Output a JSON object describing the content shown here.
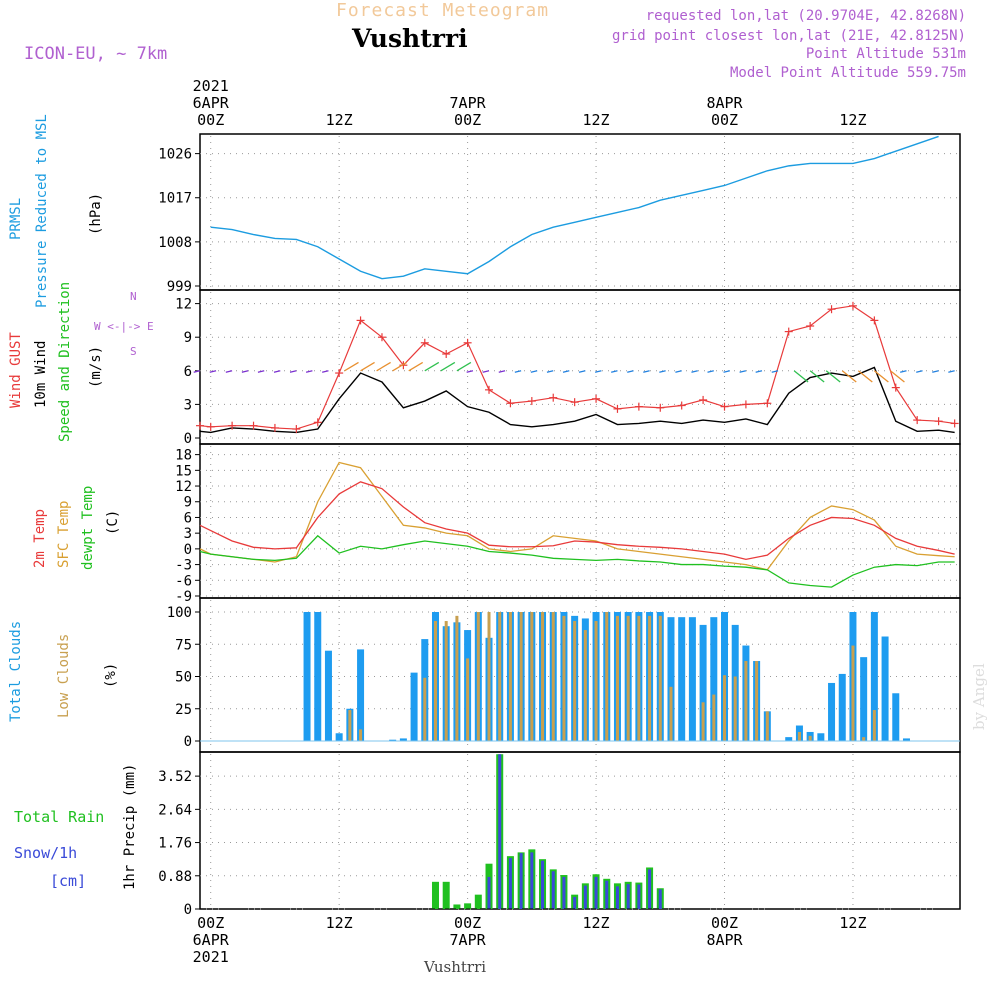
{
  "header": {
    "supertitle": "Forecast Meteogram",
    "station": "Vushtrri",
    "model": "ICON-EU, ~ 7km",
    "requested": "requested lon,lat (20.9704E, 42.8268N)",
    "closest": "grid point closest lon,lat (21E, 42.8125N)",
    "point_alt": "Point Altitude 531m",
    "model_alt": "Model Point Altitude 559.75m",
    "footer_station": "Vushtrri",
    "credit": "by Angel"
  },
  "time_axis": {
    "top": [
      {
        "hour": 0,
        "lines": [
          "2021",
          "6APR",
          "00Z"
        ]
      },
      {
        "hour": 12,
        "lines": [
          "12Z"
        ]
      },
      {
        "hour": 24,
        "lines": [
          "7APR",
          "00Z"
        ]
      },
      {
        "hour": 36,
        "lines": [
          "12Z"
        ]
      },
      {
        "hour": 48,
        "lines": [
          "8APR",
          "00Z"
        ]
      },
      {
        "hour": 60,
        "lines": [
          "12Z"
        ]
      }
    ],
    "bottom": [
      {
        "hour": 0,
        "lines": [
          "00Z",
          "6APR",
          "2021"
        ]
      },
      {
        "hour": 12,
        "lines": [
          "12Z"
        ]
      },
      {
        "hour": 24,
        "lines": [
          "00Z",
          "7APR"
        ]
      },
      {
        "hour": 36,
        "lines": [
          "12Z"
        ]
      },
      {
        "hour": 48,
        "lines": [
          "00Z",
          "8APR"
        ]
      },
      {
        "hour": 60,
        "lines": [
          "12Z"
        ]
      }
    ]
  },
  "panel_labels": {
    "prmsl": {
      "name": "PRMSL",
      "desc": "Pressure Reduced to MSL",
      "unit": "(hPa)"
    },
    "wind": {
      "gust": "Wind GUST",
      "wind10": "10m Wind",
      "dir": "Speed and Direction",
      "unit": "(m/s)",
      "compass_n": "N",
      "compass_s": "S",
      "compass_ew": "W <-|-> E"
    },
    "temp": {
      "t2m": "2m Temp",
      "sfc": "SFC Temp",
      "dew": "dewpt Temp",
      "unit": "(C)"
    },
    "cloud": {
      "total": "Total Clouds",
      "low": "Low Clouds",
      "unit": "(%)"
    },
    "precip": {
      "rain": "Total  Rain",
      "snow": "Snow/1h",
      "snow_unit": "[cm]",
      "ylabel": "1hr Precip (mm)"
    }
  },
  "colors": {
    "pressure": "#1c9ce0",
    "gust": "#e83a3a",
    "wind": "#000000",
    "arrows_low": "#7a2fd0",
    "t2m": "#e83a3a",
    "sfc": "#d9a032",
    "dew": "#20c020",
    "total_cloud": "#1e9cf0",
    "low_cloud": "#c8a050",
    "rain": "#20c020",
    "snow": "#3a4ad8",
    "accent": "#b060d0"
  },
  "chart_data": [
    {
      "type": "line",
      "title": "PRMSL Pressure Reduced to MSL",
      "ylabel": "(hPa)",
      "x_start_hour": -1,
      "x_end_hour": 70,
      "ylim": [
        999,
        1030
      ],
      "yticks": [
        999,
        1008,
        1017,
        1026
      ],
      "series": [
        {
          "name": "Pressure",
          "x": [
            0,
            2,
            4,
            6,
            8,
            10,
            12,
            14,
            16,
            18,
            20,
            22,
            24,
            26,
            28,
            30,
            32,
            34,
            36,
            38,
            40,
            42,
            44,
            46,
            48,
            50,
            52,
            54,
            56,
            58,
            60,
            62,
            64,
            66,
            68
          ],
          "values": [
            1011,
            1010.5,
            1009.5,
            1008.7,
            1008.5,
            1007,
            1004.5,
            1002,
            1000.5,
            1001,
            1002.5,
            1002,
            1001.5,
            1004,
            1007,
            1009.5,
            1011,
            1012,
            1013,
            1014,
            1015,
            1016.5,
            1017.5,
            1018.5,
            1019.5,
            1021,
            1022.5,
            1023.5,
            1024,
            1024,
            1024,
            1025,
            1026.5,
            1028,
            1029.5
          ]
        }
      ]
    },
    {
      "type": "line",
      "title": "Wind GUST / 10m Wind Speed and Direction",
      "ylabel": "(m/s)",
      "ylim": [
        0,
        12.5
      ],
      "yticks": [
        0,
        3,
        6,
        9,
        12
      ],
      "series": [
        {
          "name": "Wind GUST",
          "x": [
            -1,
            0,
            2,
            4,
            6,
            8,
            10,
            12,
            14,
            16,
            18,
            20,
            22,
            24,
            26,
            28,
            30,
            32,
            34,
            36,
            38,
            40,
            42,
            44,
            46,
            48,
            50,
            52,
            54,
            56,
            58,
            60,
            62,
            64,
            66,
            68,
            69.5
          ],
          "values": [
            1.1,
            1,
            1.1,
            1.1,
            0.9,
            0.8,
            1.4,
            5.8,
            10.5,
            9,
            6.5,
            8.5,
            7.5,
            8.5,
            4.3,
            3.1,
            3.3,
            3.6,
            3.2,
            3.5,
            2.6,
            2.8,
            2.7,
            2.9,
            3.4,
            2.8,
            3,
            3.1,
            9.5,
            10,
            11.5,
            11.8,
            10.5,
            4.5,
            1.6,
            1.5,
            1.3
          ]
        },
        {
          "name": "10m Wind",
          "x": [
            -1,
            0,
            2,
            4,
            6,
            8,
            10,
            12,
            14,
            16,
            18,
            20,
            22,
            24,
            26,
            28,
            30,
            32,
            34,
            36,
            38,
            40,
            42,
            44,
            46,
            48,
            50,
            52,
            54,
            56,
            58,
            60,
            62,
            64,
            66,
            68,
            69.5
          ],
          "values": [
            0.6,
            0.5,
            0.9,
            0.8,
            0.6,
            0.5,
            0.8,
            3.5,
            5.8,
            5,
            2.7,
            3.3,
            4.2,
            2.8,
            2.3,
            1.2,
            1,
            1.2,
            1.5,
            2.1,
            1.2,
            1.3,
            1.5,
            1.3,
            1.6,
            1.4,
            1.7,
            1.2,
            4,
            5.4,
            5.8,
            5.5,
            6.3,
            1.5,
            0.6,
            0.7,
            0.5
          ]
        }
      ]
    },
    {
      "type": "line",
      "title": "2m Temp / SFC Temp / dewpt Temp",
      "ylabel": "(C)",
      "ylim": [
        -9,
        18.5
      ],
      "yticks": [
        -9,
        -6,
        -3,
        0,
        3,
        6,
        9,
        12,
        15,
        18
      ],
      "series": [
        {
          "name": "2m Temp",
          "x": [
            -1,
            0,
            2,
            4,
            6,
            8,
            10,
            12,
            14,
            16,
            18,
            20,
            22,
            24,
            26,
            28,
            30,
            32,
            34,
            36,
            38,
            40,
            42,
            44,
            46,
            48,
            50,
            52,
            54,
            56,
            58,
            60,
            62,
            64,
            66,
            68,
            69.5
          ],
          "values": [
            4.5,
            3.5,
            1.5,
            0.3,
            0,
            0.2,
            6,
            10.5,
            12.8,
            11.5,
            8,
            5,
            3.8,
            3,
            0.7,
            0.4,
            0.4,
            0.6,
            1.5,
            1.3,
            0.8,
            0.5,
            0.3,
            0,
            -0.5,
            -1,
            -2,
            -1.2,
            2,
            4.5,
            6,
            5.8,
            4.5,
            2,
            0.5,
            -0.3,
            -1
          ]
        },
        {
          "name": "SFC Temp",
          "x": [
            -1,
            0,
            2,
            4,
            6,
            8,
            10,
            12,
            14,
            16,
            18,
            20,
            22,
            24,
            26,
            28,
            30,
            32,
            34,
            36,
            38,
            40,
            42,
            44,
            46,
            48,
            50,
            52,
            54,
            56,
            58,
            60,
            62,
            64,
            66,
            68,
            69.5
          ],
          "values": [
            0,
            -1,
            -1.5,
            -2,
            -2.5,
            -1.5,
            9,
            16.5,
            15.5,
            10,
            4.5,
            4,
            3,
            2.5,
            0,
            -0.5,
            0,
            2.5,
            2,
            1.5,
            0,
            -0.5,
            -1,
            -1.5,
            -2,
            -2.5,
            -3,
            -4,
            1.5,
            6,
            8.2,
            7.5,
            5.5,
            0.5,
            -1,
            -1.3,
            -1.5
          ]
        },
        {
          "name": "dewpt Temp",
          "x": [
            -1,
            0,
            2,
            4,
            6,
            8,
            10,
            12,
            14,
            16,
            18,
            20,
            22,
            24,
            26,
            28,
            30,
            32,
            34,
            36,
            38,
            40,
            42,
            44,
            46,
            48,
            50,
            52,
            54,
            56,
            58,
            60,
            62,
            64,
            66,
            68,
            69.5
          ],
          "values": [
            -0.5,
            -1,
            -1.5,
            -2,
            -2.2,
            -1.8,
            2.5,
            -0.8,
            0.5,
            0,
            0.8,
            1.5,
            1,
            0.5,
            -0.5,
            -0.8,
            -1.2,
            -1.8,
            -2,
            -2.2,
            -2,
            -2.3,
            -2.5,
            -3,
            -3,
            -3.3,
            -3.5,
            -4,
            -6.5,
            -7,
            -7.3,
            -5,
            -3.5,
            -3,
            -3.2,
            -2.5,
            -2.5
          ]
        }
      ]
    },
    {
      "type": "bar",
      "title": "Total Clouds / Low Clouds",
      "ylabel": "(%)",
      "ylim": [
        0,
        100
      ],
      "yticks": [
        0,
        25,
        50,
        75,
        100
      ],
      "hours": [
        9,
        10,
        11,
        12,
        13,
        14,
        15,
        16,
        17,
        18,
        19,
        20,
        21,
        22,
        23,
        24,
        25,
        26,
        27,
        28,
        29,
        30,
        31,
        32,
        33,
        34,
        35,
        36,
        37,
        38,
        39,
        40,
        41,
        42,
        43,
        44,
        45,
        46,
        47,
        48,
        49,
        50,
        51,
        52,
        53,
        54,
        55,
        56,
        57,
        58,
        59,
        60,
        61,
        62,
        63,
        64,
        65,
        66,
        67,
        68,
        69,
        70
      ],
      "series": [
        {
          "name": "Total Clouds",
          "values": [
            100,
            100,
            70,
            6,
            25,
            71,
            0,
            0,
            1,
            2,
            53,
            79,
            100,
            89,
            92,
            86,
            100,
            80,
            100,
            100,
            100,
            100,
            100,
            100,
            100,
            97,
            95,
            100,
            100,
            100,
            100,
            100,
            100,
            100,
            96,
            96,
            96,
            90,
            96,
            100,
            90,
            74,
            62,
            23,
            0,
            3,
            12,
            7,
            6,
            45,
            52,
            100,
            65,
            100,
            81,
            37,
            2,
            0,
            0,
            0,
            0,
            0
          ]
        },
        {
          "name": "Low Clouds",
          "values": [
            0,
            0,
            0,
            0,
            24,
            9,
            0,
            0,
            0,
            0,
            0,
            49,
            93,
            93,
            97,
            64,
            100,
            100,
            100,
            100,
            100,
            100,
            100,
            100,
            97,
            93,
            86,
            93,
            100,
            97,
            97,
            97,
            97,
            97,
            42,
            0,
            0,
            30,
            36,
            51,
            50,
            62,
            62,
            23,
            0,
            0,
            7,
            4,
            0,
            0,
            0,
            74,
            3,
            24,
            0,
            0,
            0,
            0,
            0,
            0,
            0,
            0
          ]
        }
      ]
    },
    {
      "type": "bar",
      "title": "1hr Precip",
      "ylabel": "1hr Precip (mm)",
      "ylim": [
        0,
        4.0
      ],
      "yticks": [
        0,
        0.88,
        1.76,
        2.64,
        3.52
      ],
      "hours": [
        19,
        20,
        21,
        22,
        23,
        24,
        25,
        26,
        27,
        28,
        29,
        30,
        31,
        32,
        33,
        34,
        35,
        36,
        37,
        38,
        39,
        40,
        41,
        42,
        43,
        44,
        45,
        46,
        47
      ],
      "series": [
        {
          "name": "Total Rain",
          "values": [
            0,
            0,
            0.72,
            0.72,
            0.12,
            0.15,
            0.38,
            1.2,
            4.1,
            1.4,
            1.5,
            1.58,
            1.32,
            1.05,
            0.9,
            0.38,
            0.68,
            0.92,
            0.8,
            0.68,
            0.72,
            0.7,
            1.1,
            0.55,
            0,
            0,
            0,
            0,
            0
          ]
        },
        {
          "name": "Snow/1h",
          "values": [
            0,
            0,
            0,
            0,
            0,
            0,
            0,
            0.85,
            4.1,
            1.35,
            1.48,
            1.5,
            1.28,
            1.0,
            0.85,
            0.32,
            0.62,
            0.85,
            0.75,
            0.6,
            0.66,
            0.65,
            1.05,
            0.52,
            0,
            0,
            0,
            0,
            0
          ]
        }
      ]
    }
  ]
}
